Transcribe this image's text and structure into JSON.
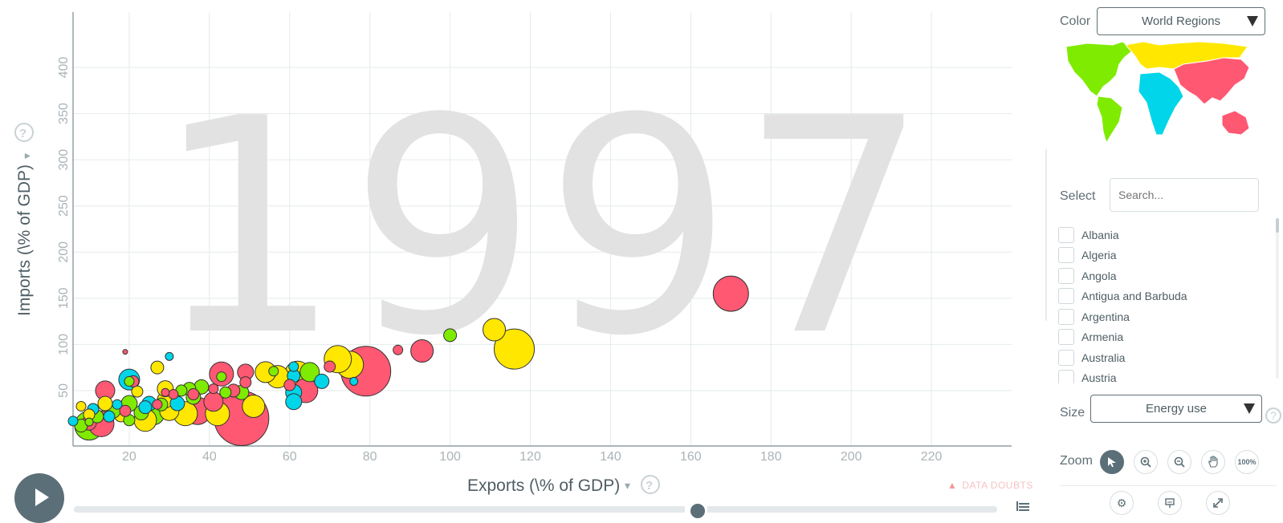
{
  "colors": {
    "asia": "#ff5872",
    "europe": "#ffe700",
    "americas": "#7feb00",
    "africa": "#00d5e9",
    "accent": "#5b6f78",
    "grid": "#e3ece9"
  },
  "chart_data": {
    "type": "scatter",
    "year": "1997",
    "xlabel": "Exports (\\% of GDP)",
    "ylabel": "Imports (\\% of GDP)",
    "x_ticks": [
      20,
      40,
      60,
      80,
      100,
      120,
      140,
      160,
      180,
      200,
      220
    ],
    "y_ticks": [
      50,
      100,
      150,
      200,
      250,
      300,
      350,
      400
    ],
    "xlim": [
      6,
      240
    ],
    "ylim": [
      -10,
      460
    ],
    "grid": true,
    "points": [
      {
        "x": 170,
        "y": 155,
        "r": 22,
        "c": "asia"
      },
      {
        "x": 116,
        "y": 95,
        "r": 25,
        "c": "europe"
      },
      {
        "x": 111,
        "y": 116,
        "r": 14,
        "c": "europe"
      },
      {
        "x": 100,
        "y": 110,
        "r": 8,
        "c": "americas"
      },
      {
        "x": 93,
        "y": 93,
        "r": 14,
        "c": "asia"
      },
      {
        "x": 87,
        "y": 94,
        "r": 6,
        "c": "asia"
      },
      {
        "x": 79,
        "y": 71,
        "r": 31,
        "c": "asia"
      },
      {
        "x": 76,
        "y": 60,
        "r": 5,
        "c": "africa"
      },
      {
        "x": 75,
        "y": 78,
        "r": 17,
        "c": "europe"
      },
      {
        "x": 72,
        "y": 84,
        "r": 17,
        "c": "europe"
      },
      {
        "x": 70,
        "y": 76,
        "r": 7,
        "c": "asia"
      },
      {
        "x": 68,
        "y": 60,
        "r": 9,
        "c": "africa"
      },
      {
        "x": 64,
        "y": 50,
        "r": 15,
        "c": "asia"
      },
      {
        "x": 65,
        "y": 70,
        "r": 12,
        "c": "americas"
      },
      {
        "x": 62,
        "y": 68,
        "r": 16,
        "c": "europe"
      },
      {
        "x": 61,
        "y": 48,
        "r": 10,
        "c": "africa"
      },
      {
        "x": 61,
        "y": 38,
        "r": 10,
        "c": "africa"
      },
      {
        "x": 61,
        "y": 66,
        "r": 8,
        "c": "africa"
      },
      {
        "x": 61,
        "y": 76,
        "r": 6,
        "c": "africa"
      },
      {
        "x": 60,
        "y": 56,
        "r": 7,
        "c": "asia"
      },
      {
        "x": 57,
        "y": 65,
        "r": 14,
        "c": "europe"
      },
      {
        "x": 54,
        "y": 70,
        "r": 13,
        "c": "europe"
      },
      {
        "x": 56,
        "y": 71,
        "r": 6,
        "c": "americas"
      },
      {
        "x": 51,
        "y": 33,
        "r": 14,
        "c": "europe"
      },
      {
        "x": 48,
        "y": 20,
        "r": 34,
        "c": "asia"
      },
      {
        "x": 49,
        "y": 70,
        "r": 10,
        "c": "asia"
      },
      {
        "x": 49,
        "y": 59,
        "r": 7,
        "c": "asia"
      },
      {
        "x": 48,
        "y": 48,
        "r": 9,
        "c": "americas"
      },
      {
        "x": 46,
        "y": 50,
        "r": 8,
        "c": "asia"
      },
      {
        "x": 44,
        "y": 48,
        "r": 7,
        "c": "americas"
      },
      {
        "x": 43,
        "y": 68,
        "r": 15,
        "c": "asia"
      },
      {
        "x": 41,
        "y": 38,
        "r": 12,
        "c": "asia"
      },
      {
        "x": 42,
        "y": 25,
        "r": 15,
        "c": "europe"
      },
      {
        "x": 43,
        "y": 65,
        "r": 6,
        "c": "americas"
      },
      {
        "x": 41,
        "y": 52,
        "r": 6,
        "c": "asia"
      },
      {
        "x": 38,
        "y": 54,
        "r": 9,
        "c": "americas"
      },
      {
        "x": 37,
        "y": 28,
        "r": 17,
        "c": "asia"
      },
      {
        "x": 36,
        "y": 43,
        "r": 9,
        "c": "americas"
      },
      {
        "x": 35,
        "y": 52,
        "r": 8,
        "c": "americas"
      },
      {
        "x": 36,
        "y": 46,
        "r": 7,
        "c": "asia"
      },
      {
        "x": 34,
        "y": 25,
        "r": 15,
        "c": "europe"
      },
      {
        "x": 33,
        "y": 50,
        "r": 7,
        "c": "americas"
      },
      {
        "x": 32,
        "y": 36,
        "r": 9,
        "c": "africa"
      },
      {
        "x": 31,
        "y": 46,
        "r": 6,
        "c": "asia"
      },
      {
        "x": 30,
        "y": 28,
        "r": 12,
        "c": "europe"
      },
      {
        "x": 29,
        "y": 40,
        "r": 10,
        "c": "europe"
      },
      {
        "x": 30,
        "y": 87,
        "r": 5,
        "c": "africa"
      },
      {
        "x": 29,
        "y": 52,
        "r": 10,
        "c": "europe"
      },
      {
        "x": 29,
        "y": 48,
        "r": 5,
        "c": "asia"
      },
      {
        "x": 28,
        "y": 35,
        "r": 8,
        "c": "americas"
      },
      {
        "x": 27,
        "y": 75,
        "r": 8,
        "c": "europe"
      },
      {
        "x": 27,
        "y": 35,
        "r": 6,
        "c": "asia"
      },
      {
        "x": 26,
        "y": 25,
        "r": 14,
        "c": "americas"
      },
      {
        "x": 25,
        "y": 36,
        "r": 9,
        "c": "africa"
      },
      {
        "x": 24,
        "y": 18,
        "r": 14,
        "c": "europe"
      },
      {
        "x": 24,
        "y": 32,
        "r": 8,
        "c": "africa"
      },
      {
        "x": 23,
        "y": 26,
        "r": 9,
        "c": "americas"
      },
      {
        "x": 22,
        "y": 49,
        "r": 7,
        "c": "europe"
      },
      {
        "x": 21,
        "y": 60,
        "r": 7,
        "c": "asia"
      },
      {
        "x": 20,
        "y": 62,
        "r": 13,
        "c": "africa"
      },
      {
        "x": 20,
        "y": 60,
        "r": 6,
        "c": "americas"
      },
      {
        "x": 20,
        "y": 36,
        "r": 10,
        "c": "americas"
      },
      {
        "x": 20,
        "y": 18,
        "r": 7,
        "c": "americas"
      },
      {
        "x": 19,
        "y": 28,
        "r": 7,
        "c": "asia"
      },
      {
        "x": 19,
        "y": 92,
        "r": 3,
        "c": "asia"
      },
      {
        "x": 18,
        "y": 24,
        "r": 9,
        "c": "europe"
      },
      {
        "x": 17,
        "y": 35,
        "r": 6,
        "c": "africa"
      },
      {
        "x": 16,
        "y": 28,
        "r": 9,
        "c": "americas"
      },
      {
        "x": 15,
        "y": 22,
        "r": 7,
        "c": "africa"
      },
      {
        "x": 14,
        "y": 36,
        "r": 9,
        "c": "europe"
      },
      {
        "x": 14,
        "y": 50,
        "r": 12,
        "c": "asia"
      },
      {
        "x": 13,
        "y": 14,
        "r": 16,
        "c": "asia"
      },
      {
        "x": 12,
        "y": 22,
        "r": 8,
        "c": "americas"
      },
      {
        "x": 11,
        "y": 30,
        "r": 7,
        "c": "africa"
      },
      {
        "x": 10,
        "y": 24,
        "r": 7,
        "c": "europe"
      },
      {
        "x": 10,
        "y": 12,
        "r": 18,
        "c": "americas"
      },
      {
        "x": 10,
        "y": 15,
        "r": 9,
        "c": "asia"
      },
      {
        "x": 10,
        "y": 16,
        "r": 5,
        "c": "americas"
      },
      {
        "x": 8,
        "y": 33,
        "r": 6,
        "c": "europe"
      },
      {
        "x": 8,
        "y": 12,
        "r": 8,
        "c": "americas"
      },
      {
        "x": 6,
        "y": 17,
        "r": 6,
        "c": "africa"
      }
    ]
  },
  "sidebar": {
    "color_label": "Color",
    "color_value": "World Regions",
    "select_label": "Select",
    "search_placeholder": "Search...",
    "countries": [
      "Albania",
      "Algeria",
      "Angola",
      "Antigua and Barbuda",
      "Argentina",
      "Armenia",
      "Australia",
      "Austria"
    ],
    "size_label": "Size",
    "size_value": "Energy use",
    "zoom_label": "Zoom",
    "zoom_100_label": "100%"
  },
  "footer": {
    "data_doubts": "DATA DOUBTS"
  }
}
